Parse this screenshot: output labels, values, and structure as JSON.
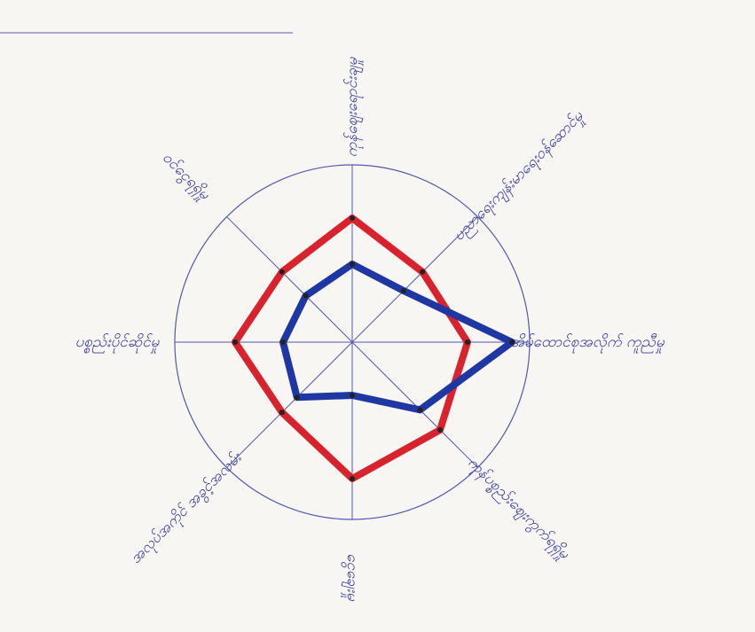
{
  "chart_data": {
    "type": "radar",
    "categories": [
      "ကုန်ဈေးရောင်းချမှု",
      "ပညာရေးကျန်းမာရေးဝန်ဆောင်မှု",
      "အိမ်ထောင်စုအလိုက် ကူညီမှု",
      "ကုန်ပစ္စည်းဈေးကွက်ရရှိမှု",
      "ငွေချေးမှု",
      "အလုပ်အကိုင် အခွင့်အလမ်း",
      "ပစ္စည်းပိုင်ဆိုင်မှု",
      "ဝင်ငွေရရှိမှု"
    ],
    "rlim": [
      0,
      10
    ],
    "series": [
      {
        "color": "#d8232f",
        "values": [
          7,
          5.6,
          6.5,
          7,
          7.7,
          5.6,
          6.6,
          5.6
        ]
      },
      {
        "color": "#1e37a3",
        "values": [
          4.4,
          4.1,
          9,
          5.4,
          3,
          4.4,
          3.9,
          3.7
        ]
      }
    ]
  }
}
